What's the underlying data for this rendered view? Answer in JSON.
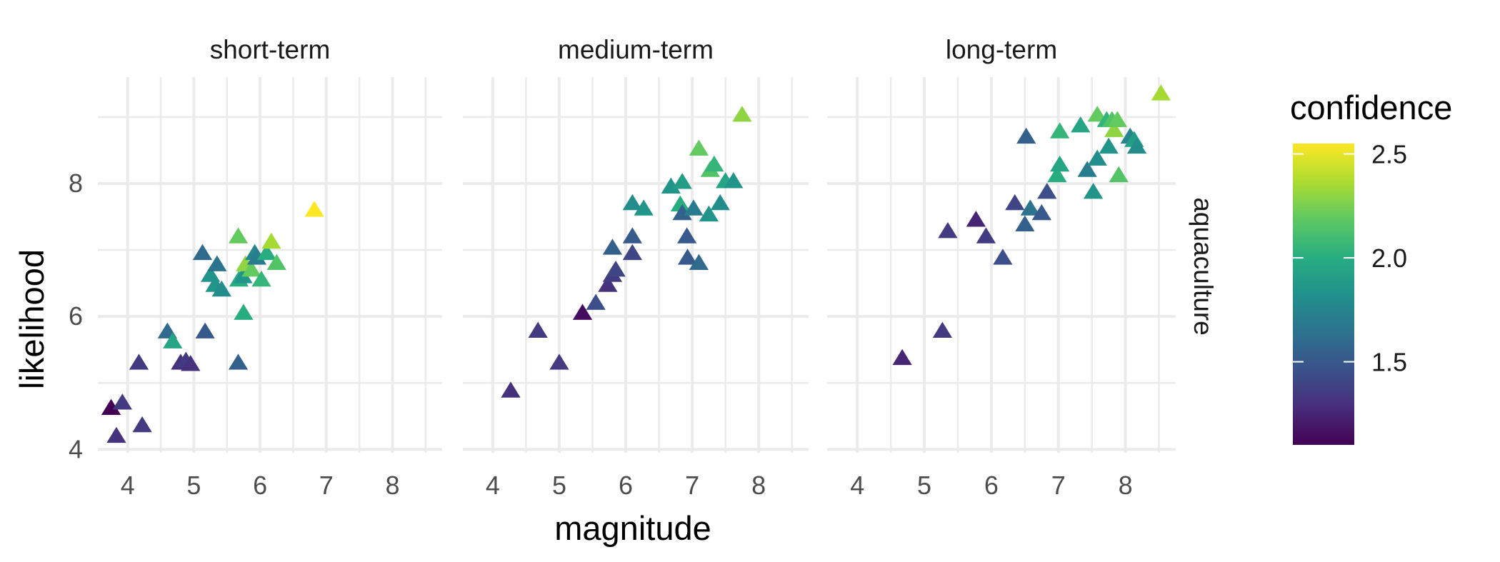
{
  "chart_data": {
    "type": "scatter",
    "marker": "triangle",
    "facet_row_label": "aquaculture",
    "xlabel": "magnitude",
    "ylabel": "likelihood",
    "xlim": [
      3.55,
      8.75
    ],
    "ylim": [
      3.95,
      9.6
    ],
    "x_ticks": [
      4,
      5,
      6,
      7,
      8
    ],
    "y_ticks": [
      4,
      6,
      8
    ],
    "grid": true,
    "legend": {
      "title": "confidence",
      "position": "right",
      "min": 1.1,
      "max": 2.55,
      "ticks": [
        1.5,
        2.0,
        2.5
      ],
      "tick_labels": [
        "1.5",
        "2.0",
        "2.5"
      ],
      "colormap": [
        "#440154",
        "#472d7b",
        "#3b528b",
        "#2c728e",
        "#21918c",
        "#28ae80",
        "#5ec962",
        "#addc30",
        "#fde725"
      ]
    },
    "panels": [
      {
        "title": "short-term",
        "points": [
          {
            "x": 3.75,
            "y": 4.62,
            "c": 1.1
          },
          {
            "x": 3.92,
            "y": 4.7,
            "c": 1.35
          },
          {
            "x": 3.83,
            "y": 4.2,
            "c": 1.3
          },
          {
            "x": 4.22,
            "y": 4.36,
            "c": 1.35
          },
          {
            "x": 4.17,
            "y": 5.3,
            "c": 1.35
          },
          {
            "x": 4.8,
            "y": 5.3,
            "c": 1.3
          },
          {
            "x": 4.88,
            "y": 5.33,
            "c": 1.35
          },
          {
            "x": 4.95,
            "y": 5.28,
            "c": 1.3
          },
          {
            "x": 4.6,
            "y": 5.77,
            "c": 1.6
          },
          {
            "x": 4.68,
            "y": 5.62,
            "c": 1.95
          },
          {
            "x": 5.17,
            "y": 5.77,
            "c": 1.5
          },
          {
            "x": 5.67,
            "y": 5.3,
            "c": 1.55
          },
          {
            "x": 5.13,
            "y": 6.95,
            "c": 1.6
          },
          {
            "x": 5.25,
            "y": 6.62,
            "c": 1.85
          },
          {
            "x": 5.35,
            "y": 6.78,
            "c": 1.65
          },
          {
            "x": 5.32,
            "y": 6.47,
            "c": 1.85
          },
          {
            "x": 5.42,
            "y": 6.4,
            "c": 1.8
          },
          {
            "x": 5.67,
            "y": 7.2,
            "c": 2.2
          },
          {
            "x": 5.68,
            "y": 6.55,
            "c": 2.0
          },
          {
            "x": 5.74,
            "y": 6.6,
            "c": 1.85
          },
          {
            "x": 5.75,
            "y": 6.05,
            "c": 2.0
          },
          {
            "x": 5.78,
            "y": 6.78,
            "c": 2.3
          },
          {
            "x": 5.87,
            "y": 6.7,
            "c": 2.2
          },
          {
            "x": 5.92,
            "y": 6.95,
            "c": 1.75
          },
          {
            "x": 5.95,
            "y": 6.88,
            "c": 1.7
          },
          {
            "x": 6.02,
            "y": 6.55,
            "c": 2.05
          },
          {
            "x": 6.1,
            "y": 6.95,
            "c": 2.0
          },
          {
            "x": 6.17,
            "y": 7.12,
            "c": 2.35
          },
          {
            "x": 6.25,
            "y": 6.8,
            "c": 2.15
          },
          {
            "x": 6.82,
            "y": 7.6,
            "c": 2.55
          }
        ]
      },
      {
        "title": "medium-term",
        "points": [
          {
            "x": 4.27,
            "y": 4.88,
            "c": 1.3
          },
          {
            "x": 4.68,
            "y": 5.78,
            "c": 1.35
          },
          {
            "x": 5.0,
            "y": 5.3,
            "c": 1.35
          },
          {
            "x": 5.35,
            "y": 6.05,
            "c": 1.15
          },
          {
            "x": 5.55,
            "y": 6.2,
            "c": 1.45
          },
          {
            "x": 5.73,
            "y": 6.47,
            "c": 1.3
          },
          {
            "x": 5.8,
            "y": 6.62,
            "c": 1.35
          },
          {
            "x": 5.85,
            "y": 6.7,
            "c": 1.4
          },
          {
            "x": 5.8,
            "y": 7.03,
            "c": 1.55
          },
          {
            "x": 6.1,
            "y": 6.95,
            "c": 1.4
          },
          {
            "x": 6.1,
            "y": 7.2,
            "c": 1.5
          },
          {
            "x": 6.1,
            "y": 7.7,
            "c": 1.8
          },
          {
            "x": 6.27,
            "y": 7.62,
            "c": 1.85
          },
          {
            "x": 6.68,
            "y": 7.95,
            "c": 1.85
          },
          {
            "x": 6.85,
            "y": 8.02,
            "c": 1.9
          },
          {
            "x": 6.82,
            "y": 7.68,
            "c": 2.0
          },
          {
            "x": 6.85,
            "y": 7.55,
            "c": 1.55
          },
          {
            "x": 6.92,
            "y": 7.2,
            "c": 1.5
          },
          {
            "x": 6.93,
            "y": 6.88,
            "c": 1.5
          },
          {
            "x": 7.02,
            "y": 7.62,
            "c": 1.7
          },
          {
            "x": 7.1,
            "y": 6.8,
            "c": 1.6
          },
          {
            "x": 7.1,
            "y": 8.52,
            "c": 2.2
          },
          {
            "x": 7.25,
            "y": 7.53,
            "c": 1.85
          },
          {
            "x": 7.27,
            "y": 8.2,
            "c": 2.15
          },
          {
            "x": 7.33,
            "y": 8.28,
            "c": 2.05
          },
          {
            "x": 7.42,
            "y": 7.7,
            "c": 1.8
          },
          {
            "x": 7.5,
            "y": 8.03,
            "c": 1.95
          },
          {
            "x": 7.62,
            "y": 8.03,
            "c": 1.85
          },
          {
            "x": 7.75,
            "y": 9.03,
            "c": 2.3
          }
        ]
      },
      {
        "title": "long-term",
        "points": [
          {
            "x": 4.67,
            "y": 5.37,
            "c": 1.25
          },
          {
            "x": 5.27,
            "y": 5.78,
            "c": 1.35
          },
          {
            "x": 5.35,
            "y": 7.28,
            "c": 1.35
          },
          {
            "x": 5.77,
            "y": 7.45,
            "c": 1.25
          },
          {
            "x": 5.92,
            "y": 7.2,
            "c": 1.35
          },
          {
            "x": 6.17,
            "y": 6.88,
            "c": 1.45
          },
          {
            "x": 6.35,
            "y": 7.7,
            "c": 1.4
          },
          {
            "x": 6.5,
            "y": 7.38,
            "c": 1.55
          },
          {
            "x": 6.52,
            "y": 8.7,
            "c": 1.55
          },
          {
            "x": 6.58,
            "y": 7.62,
            "c": 1.65
          },
          {
            "x": 6.75,
            "y": 7.55,
            "c": 1.5
          },
          {
            "x": 6.83,
            "y": 7.87,
            "c": 1.45
          },
          {
            "x": 6.98,
            "y": 8.12,
            "c": 2.0
          },
          {
            "x": 7.02,
            "y": 8.78,
            "c": 2.05
          },
          {
            "x": 7.02,
            "y": 8.28,
            "c": 1.95
          },
          {
            "x": 7.33,
            "y": 8.87,
            "c": 1.95
          },
          {
            "x": 7.43,
            "y": 8.2,
            "c": 1.7
          },
          {
            "x": 7.52,
            "y": 7.87,
            "c": 1.85
          },
          {
            "x": 7.58,
            "y": 8.37,
            "c": 1.8
          },
          {
            "x": 7.58,
            "y": 9.03,
            "c": 2.2
          },
          {
            "x": 7.72,
            "y": 8.95,
            "c": 2.05
          },
          {
            "x": 7.75,
            "y": 8.55,
            "c": 1.85
          },
          {
            "x": 7.8,
            "y": 8.95,
            "c": 2.15
          },
          {
            "x": 7.83,
            "y": 8.8,
            "c": 2.3
          },
          {
            "x": 7.88,
            "y": 8.95,
            "c": 2.2
          },
          {
            "x": 7.9,
            "y": 8.12,
            "c": 2.15
          },
          {
            "x": 8.07,
            "y": 8.7,
            "c": 1.75
          },
          {
            "x": 8.13,
            "y": 8.65,
            "c": 1.9
          },
          {
            "x": 8.17,
            "y": 8.55,
            "c": 1.8
          },
          {
            "x": 8.53,
            "y": 9.35,
            "c": 2.35
          }
        ]
      }
    ]
  }
}
